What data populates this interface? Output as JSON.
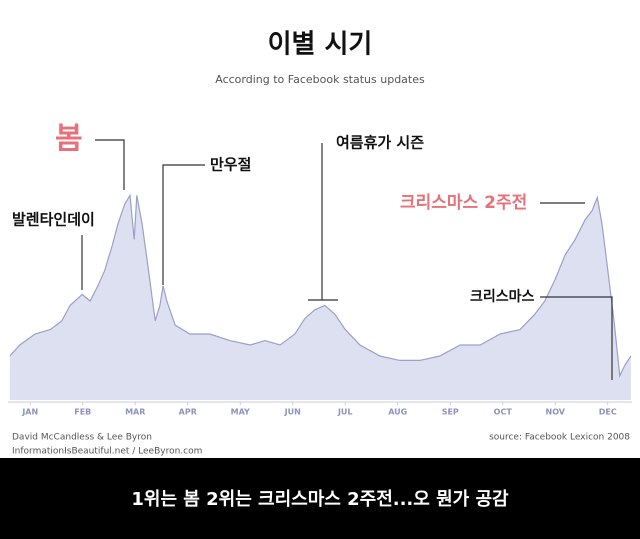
{
  "chart_data": {
    "type": "area",
    "title": "이별 시기",
    "subtitle": "According to Facebook status updates",
    "x": [
      0.11,
      0.3,
      0.59,
      0.88,
      1.1,
      1.26,
      1.49,
      1.64,
      1.79,
      1.92,
      2.06,
      2.17,
      2.3,
      2.4,
      2.48,
      2.53,
      2.63,
      2.74,
      2.88,
      2.97,
      3.03,
      3.1,
      3.26,
      3.54,
      3.92,
      4.3,
      4.69,
      4.97,
      5.26,
      5.54,
      5.73,
      5.92,
      6.11,
      6.3,
      6.5,
      6.78,
      7.16,
      7.54,
      7.92,
      8.3,
      8.69,
      9.07,
      9.45,
      9.83,
      10.11,
      10.3,
      10.5,
      10.69,
      10.88,
      11.07,
      11.2,
      11.3,
      11.39,
      11.5,
      11.62,
      11.73,
      11.83,
      11.94
    ],
    "values": [
      20,
      25,
      30,
      32,
      36,
      43,
      48,
      45,
      52,
      59,
      70,
      80,
      89,
      93,
      73,
      93,
      80,
      61,
      36,
      43,
      52,
      45,
      34,
      30,
      30,
      27,
      25,
      27,
      25,
      30,
      37,
      41,
      43,
      39,
      32,
      25,
      20,
      18,
      18,
      20,
      25,
      25,
      30,
      32,
      39,
      45,
      55,
      66,
      73,
      82,
      86,
      92,
      80,
      59,
      36,
      11,
      16,
      20
    ],
    "xlim": [
      0,
      12
    ],
    "ylim": [
      0,
      100
    ],
    "xticks": [
      {
        "value": 0.5,
        "label": "JAN"
      },
      {
        "value": 1.5,
        "label": "FEB"
      },
      {
        "value": 2.5,
        "label": "MAR"
      },
      {
        "value": 3.5,
        "label": "APR"
      },
      {
        "value": 4.5,
        "label": "MAY"
      },
      {
        "value": 5.5,
        "label": "JUN"
      },
      {
        "value": 6.5,
        "label": "JUL"
      },
      {
        "value": 7.5,
        "label": "AUG"
      },
      {
        "value": 8.5,
        "label": "SEP"
      },
      {
        "value": 9.5,
        "label": "OCT"
      },
      {
        "value": 10.5,
        "label": "NOV"
      },
      {
        "value": 11.5,
        "label": "DEC"
      }
    ],
    "color": "#dde0f1",
    "line_color": "#9aa0c9",
    "annotations": [
      {
        "text": "봄",
        "color": "#e8707a"
      },
      {
        "text": "만우절",
        "color": "#111111"
      },
      {
        "text": "발렌타인데이",
        "color": "#111111"
      },
      {
        "text": "여름휴가 시즌",
        "color": "#111111"
      },
      {
        "text": "크리스마스 2주전",
        "color": "#e8707a"
      },
      {
        "text": "크리스마스",
        "color": "#111111"
      }
    ],
    "credits": [
      "David McCandless & Lee Byron",
      "InformationIsBeautiful.net / LeeByron.com"
    ],
    "source": "source: Facebook Lexicon 2008"
  },
  "caption": "1위는 봄 2위는 크리스마스 2주전...오 뭔가 공감"
}
